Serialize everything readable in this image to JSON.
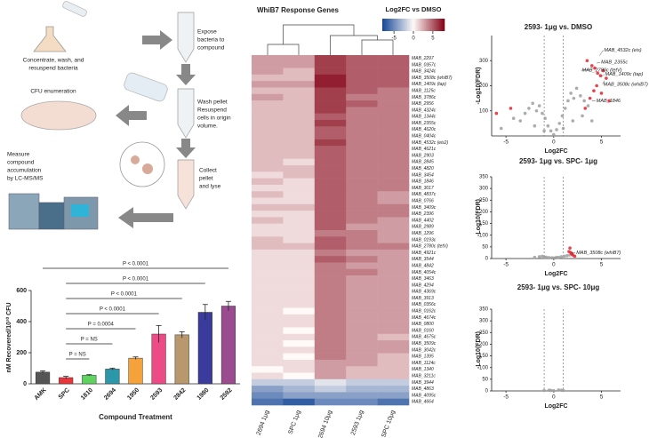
{
  "diagram": {
    "steps": [
      [
        "Concentrate, wash, and",
        "resuspend bacteria"
      ],
      [
        "Expose",
        "bacteria to",
        "compound"
      ],
      [
        "Wash pellet",
        "Resuspend",
        "cells in origin",
        "volume."
      ],
      [
        "CFU enumeration"
      ],
      [
        "Collect",
        "pellet",
        "and lyse"
      ],
      [
        "Measure",
        "compound",
        "accumulation",
        "by LC-MS/MS"
      ]
    ]
  },
  "chart_data": [
    {
      "type": "bar",
      "x_label": "Compound Treatment",
      "y_label": "nM Recovered/10¹⁰ CFU",
      "categories": [
        "AMK",
        "SPC",
        "1810",
        "2694",
        "1950",
        "2593",
        "2842",
        "1980",
        "2592"
      ],
      "values": [
        75,
        40,
        55,
        95,
        165,
        320,
        315,
        460,
        500
      ],
      "errors": [
        8,
        8,
        4,
        6,
        8,
        55,
        20,
        50,
        30
      ],
      "colors": [
        "#555555",
        "#e8363b",
        "#5fd35f",
        "#2b97a8",
        "#f5a23a",
        "#ec4b86",
        "#b8986c",
        "#3b3b9e",
        "#9b4b8f"
      ],
      "ylim": [
        0,
        600
      ],
      "yticks": [
        0,
        200,
        400,
        600
      ],
      "annotations": [
        {
          "text": "P < 0.0001",
          "from": "AMK",
          "to": "2592"
        },
        {
          "text": "P < 0.0001",
          "from": "SPC",
          "to": "1980"
        },
        {
          "text": "P < 0.0001",
          "from": "SPC",
          "to": "2842"
        },
        {
          "text": "P < 0.0001",
          "from": "SPC",
          "to": "2593"
        },
        {
          "text": "P = 0.0004",
          "from": "SPC",
          "to": "1950"
        },
        {
          "text": "P = NS",
          "from": "SPC",
          "to": "2694"
        },
        {
          "text": "P = NS",
          "from": "SPC",
          "to": "1810"
        }
      ]
    },
    {
      "type": "heatmap",
      "title": "WhiB7 Response Genes",
      "colorbar_label": "Log2FC vs DMSO",
      "clim": [
        -8,
        8
      ],
      "cticks": [
        -5,
        0,
        5
      ],
      "columns": [
        "2694 1μg",
        "SPC 1μg",
        "2694 10μg",
        "2593 1μg",
        "SPC 10μg"
      ],
      "rows": [
        "MAB_2297",
        "MAB_0357c",
        "MAB_3424c",
        "MAB_3508c (whiB7)",
        "MAB_1409c (tap)",
        "MAB_1125c",
        "MAB_3786c",
        "MAB_2956",
        "MAB_4324c",
        "MAB_1344c",
        "MAB_2355c",
        "MAB_4620c",
        "MAB_0404c",
        "MAB_4532c (eis2)",
        "MAB_4621c",
        "MAB_2903",
        "MAB_2845",
        "MAB_4820",
        "MAB_3454",
        "MAB_1846",
        "MAB_3017",
        "MAB_4837c",
        "MAB_0766",
        "MAB_3409c",
        "MAB_2396",
        "MAB_4402",
        "MAB_2989",
        "MAB_1296",
        "MAB_0193c",
        "MAB_2780c (tetV)",
        "MAB_4921c",
        "MAB_3544",
        "MAB_4842",
        "MAB_4054c",
        "MAB_3463",
        "MAB_4294",
        "MAB_4369c",
        "MAB_3913",
        "MAB_0356c",
        "MAB_0162c",
        "MAB_4674c",
        "MAB_0800",
        "MAB_0160",
        "MAB_4675c",
        "MAB_3509c",
        "MAB_3042c",
        "MAB_1395",
        "MAB_1124c",
        "MAB_1340",
        "MAB_3211c",
        "MAB_3944",
        "MAB_4863",
        "MAB_4095c",
        "MAB_4664"
      ],
      "values": [
        [
          3,
          3,
          6,
          5,
          5
        ],
        [
          3,
          3,
          6,
          5,
          5
        ],
        [
          3,
          2,
          6,
          5,
          5
        ],
        [
          2,
          2,
          7,
          5,
          5
        ],
        [
          3,
          3,
          7,
          5,
          5
        ],
        [
          2,
          2,
          6,
          5,
          4
        ],
        [
          3,
          2,
          6,
          4,
          4
        ],
        [
          2,
          2,
          6,
          5,
          4
        ],
        [
          2,
          2,
          6,
          4,
          4
        ],
        [
          2,
          2,
          5,
          4,
          4
        ],
        [
          2,
          2,
          6,
          4,
          4
        ],
        [
          2,
          2,
          5,
          4,
          4
        ],
        [
          2,
          2,
          5,
          4,
          4
        ],
        [
          2,
          2,
          6,
          4,
          4
        ],
        [
          2,
          2,
          5,
          4,
          4
        ],
        [
          2,
          2,
          5,
          4,
          4
        ],
        [
          2,
          1,
          5,
          4,
          4
        ],
        [
          2,
          2,
          5,
          4,
          4
        ],
        [
          1,
          2,
          5,
          4,
          4
        ],
        [
          2,
          1,
          5,
          4,
          4
        ],
        [
          1,
          1,
          5,
          4,
          4
        ],
        [
          2,
          1,
          5,
          4,
          3
        ],
        [
          1,
          1,
          5,
          4,
          3
        ],
        [
          2,
          2,
          5,
          4,
          4
        ],
        [
          1,
          1,
          5,
          4,
          4
        ],
        [
          2,
          1,
          5,
          4,
          3
        ],
        [
          1,
          1,
          5,
          3,
          3
        ],
        [
          1,
          1,
          4,
          4,
          3
        ],
        [
          2,
          1,
          5,
          4,
          3
        ],
        [
          2,
          2,
          5,
          4,
          4
        ],
        [
          1,
          1,
          4,
          3,
          3
        ],
        [
          1,
          1,
          5,
          4,
          3
        ],
        [
          1,
          1,
          4,
          3,
          3
        ],
        [
          1,
          1,
          4,
          4,
          3
        ],
        [
          1,
          1,
          4,
          3,
          3
        ],
        [
          1,
          1,
          4,
          3,
          3
        ],
        [
          1,
          1,
          4,
          3,
          3
        ],
        [
          1,
          1,
          4,
          3,
          3
        ],
        [
          1,
          1,
          4,
          3,
          3
        ],
        [
          1,
          0,
          4,
          3,
          3
        ],
        [
          1,
          1,
          4,
          3,
          3
        ],
        [
          1,
          1,
          4,
          3,
          3
        ],
        [
          1,
          0,
          4,
          3,
          3
        ],
        [
          1,
          1,
          4,
          3,
          2
        ],
        [
          1,
          0,
          4,
          3,
          3
        ],
        [
          1,
          1,
          4,
          3,
          3
        ],
        [
          1,
          0,
          4,
          3,
          2
        ],
        [
          1,
          1,
          3,
          3,
          2
        ],
        [
          0,
          1,
          3,
          2,
          2
        ],
        [
          1,
          0,
          3,
          2,
          2
        ],
        [
          -2,
          -2,
          -1,
          -2,
          -2
        ],
        [
          -4,
          -3,
          -2,
          -3,
          -3
        ],
        [
          -5,
          -4,
          -4,
          -4,
          -4
        ],
        [
          -6,
          -7,
          -5,
          -5,
          -6
        ]
      ]
    },
    {
      "type": "scatter",
      "title": "2593- 1μg vs. DMSO",
      "x_label": "Log2FC",
      "y_label": "-Log10(FDR)",
      "xlim": [
        -6.5,
        7
      ],
      "ylim": [
        0,
        400
      ],
      "xticks": [
        -5,
        0,
        5
      ],
      "yticks": [
        100,
        200,
        300
      ],
      "vlines": [
        -1,
        1
      ],
      "series": [
        {
          "color": "#9e9e9e",
          "x": [
            -5.5,
            -4.2,
            -3.5,
            -3,
            -2.6,
            -2.2,
            -1.8,
            -1.5,
            -1.2,
            -0.9,
            -0.6,
            -0.3,
            0,
            0.3,
            0.6,
            0.9,
            1.2,
            1.5,
            1.8,
            2.1,
            2.4,
            2.8,
            3.2,
            3.6,
            -2,
            -1,
            1,
            2,
            3,
            4
          ],
          "values": [
            30,
            70,
            60,
            90,
            110,
            130,
            100,
            120,
            90,
            70,
            40,
            20,
            5,
            25,
            50,
            80,
            110,
            140,
            170,
            150,
            190,
            160,
            140,
            120,
            40,
            20,
            30,
            60,
            80,
            60
          ]
        },
        {
          "color": "#e8202a",
          "x": [
            -6,
            -4.5,
            3.5,
            4,
            4.3,
            4.6,
            4.9,
            5.2,
            5.5,
            4.2,
            3.8,
            4.5,
            5,
            5.8,
            3.3
          ],
          "values": [
            90,
            110,
            300,
            280,
            270,
            250,
            240,
            260,
            230,
            180,
            150,
            200,
            170,
            140,
            110
          ]
        }
      ],
      "annotations": [
        {
          "text": "MAB_4532c (eis)",
          "x": 4.8,
          "y": 320
        },
        {
          "text": "MAB_2355c",
          "x": 4.5,
          "y": 290
        },
        {
          "text": "MAB_2780c (tetV)",
          "x": 3.8,
          "y": 265
        },
        {
          "text": "MAB_1409c (tap)",
          "x": 5,
          "y": 235
        },
        {
          "text": "MAB_3508c (whiB7)",
          "x": 5.3,
          "y": 220
        },
        {
          "text": "MAB_1846",
          "x": 4,
          "y": 140
        }
      ]
    },
    {
      "type": "scatter",
      "title": "2593- 1μg vs. SPC- 1μg",
      "x_label": "Log2FC",
      "y_label": "-Log10(FDR)",
      "xlim": [
        -6.5,
        7
      ],
      "ylim": [
        0,
        350
      ],
      "xticks": [
        -5,
        0,
        5
      ],
      "yticks": [
        0,
        50,
        100,
        150,
        200,
        250,
        300,
        350
      ],
      "vlines": [
        -1,
        1
      ],
      "series": [
        {
          "color": "#9e9e9e",
          "x": [
            -2,
            -1.5,
            -1.2,
            -0.8,
            -0.5,
            -0.2,
            0,
            0.2,
            0.5,
            0.8,
            1.1,
            1.4,
            1.7,
            -1,
            0.3
          ],
          "values": [
            5,
            8,
            10,
            6,
            4,
            3,
            2,
            3,
            5,
            8,
            10,
            12,
            15,
            6,
            4
          ]
        },
        {
          "color": "#e8202a",
          "x": [
            1.6,
            1.8,
            2,
            1.7,
            1.9,
            2.2
          ],
          "values": [
            30,
            25,
            15,
            45,
            20,
            10
          ]
        }
      ],
      "annotations": [
        {
          "text": "MAB_3508c (whiB7)",
          "x": 1.9,
          "y": 25
        }
      ]
    },
    {
      "type": "scatter",
      "title": "2593- 1μg vs. SPC- 10μg",
      "x_label": "Log2FC",
      "y_label": "-Log10(FDR)",
      "xlim": [
        -6.5,
        7
      ],
      "ylim": [
        0,
        350
      ],
      "xticks": [
        -5,
        0,
        5
      ],
      "yticks": [
        0,
        50,
        100,
        150,
        200,
        250,
        300,
        350
      ],
      "vlines": [
        -1,
        1
      ],
      "series": [
        {
          "color": "#9e9e9e",
          "x": [
            -1,
            -0.5,
            0,
            0.5,
            1,
            0.8,
            -0.3
          ],
          "values": [
            2,
            3,
            1,
            4,
            2,
            3,
            2
          ]
        }
      ],
      "annotations": []
    }
  ]
}
